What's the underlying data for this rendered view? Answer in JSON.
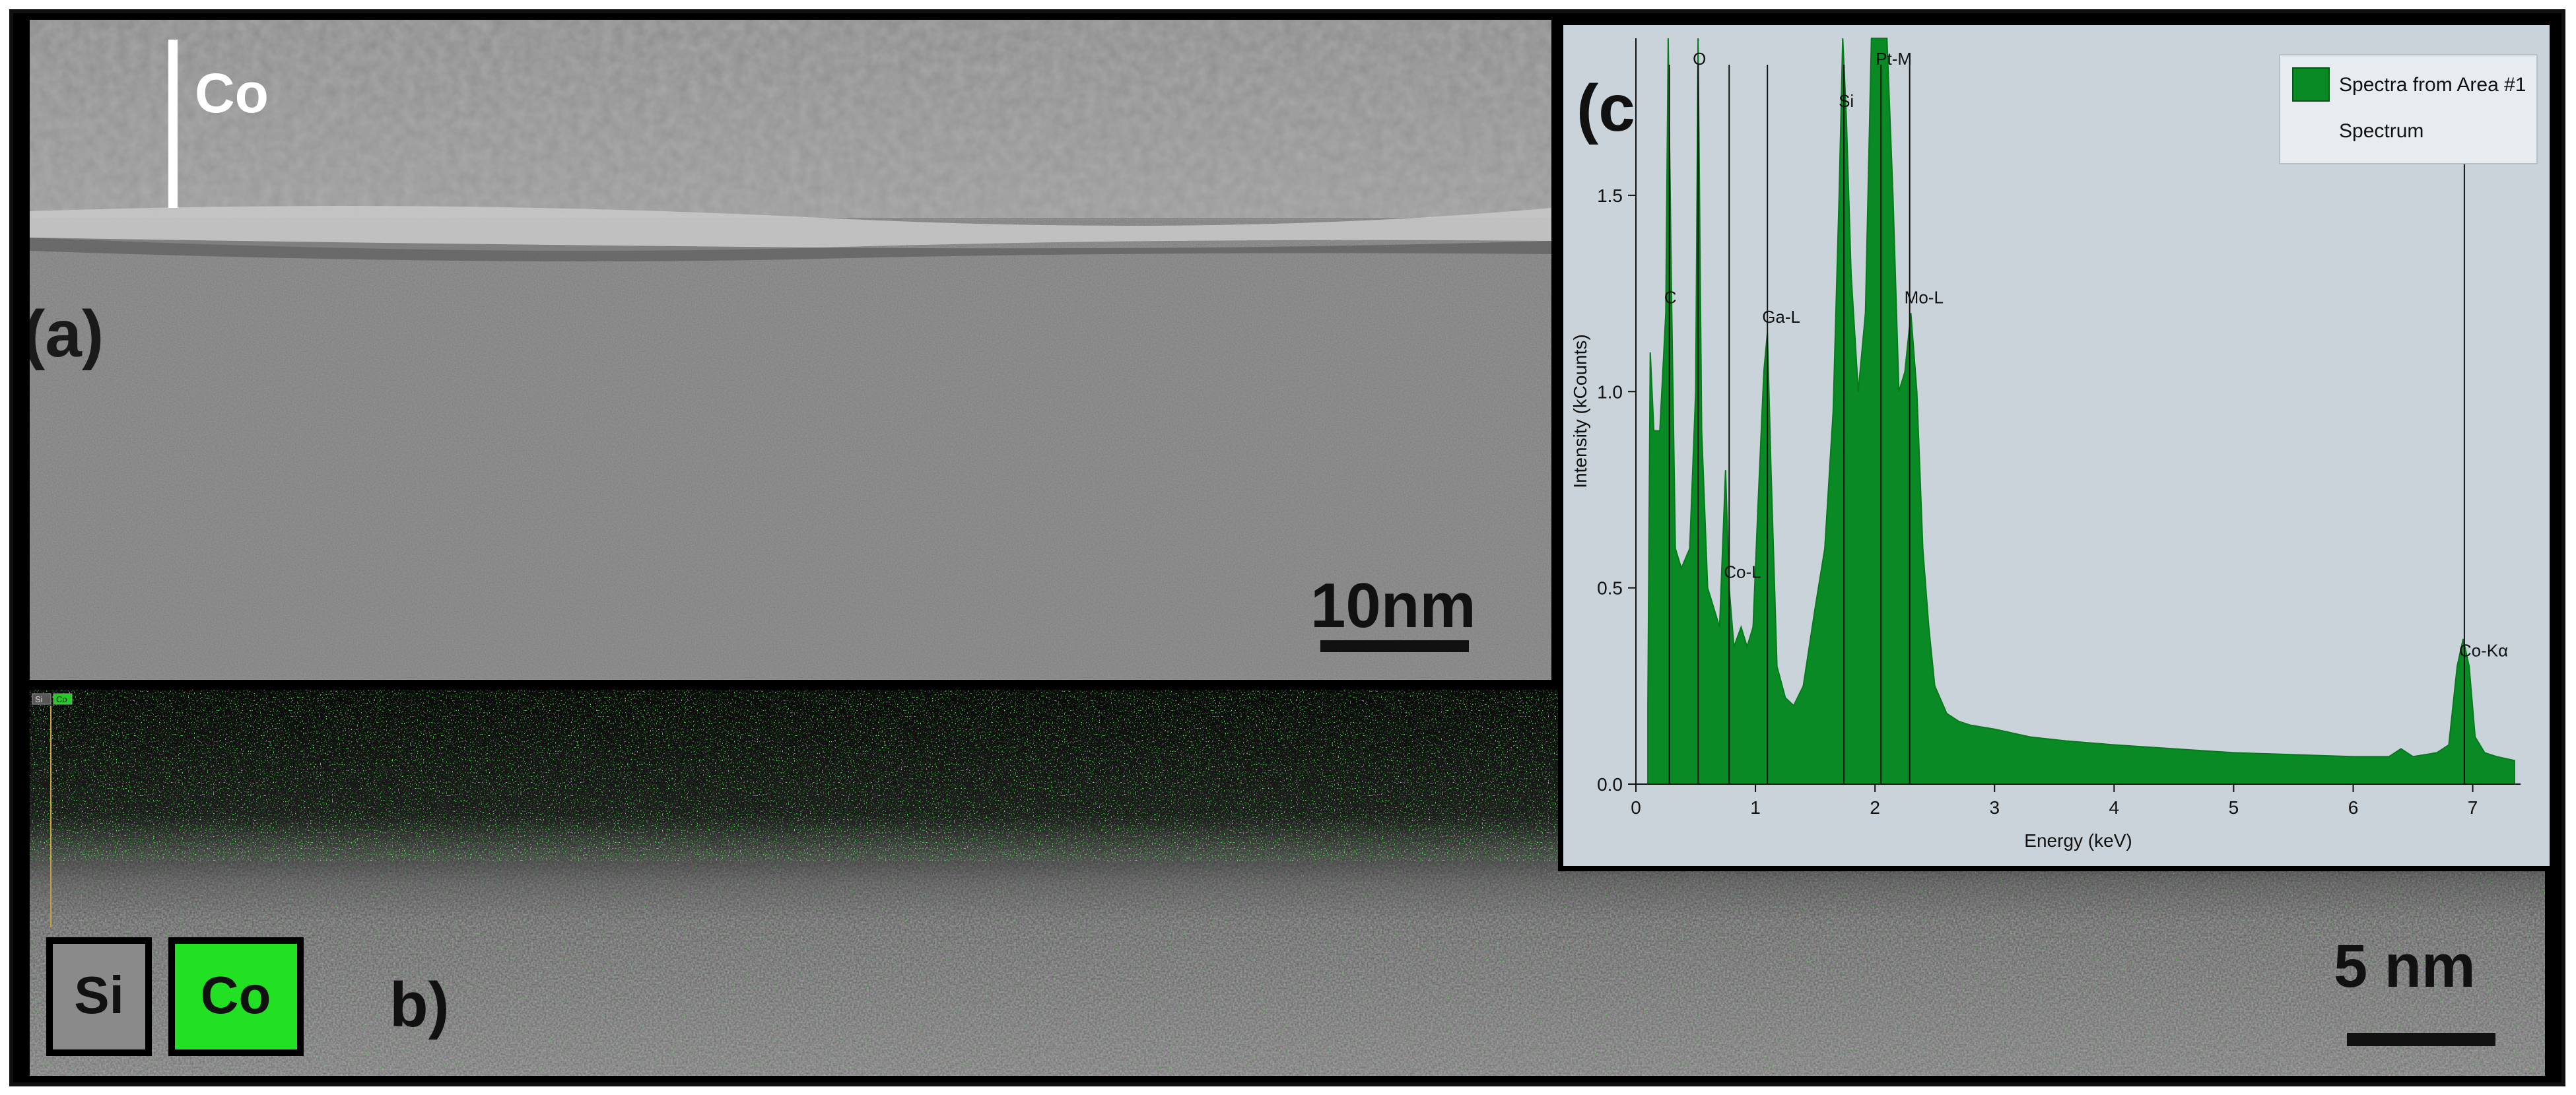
{
  "panel_a": {
    "label": "(a)",
    "layer_label": "Co",
    "scale_bar": "10nm"
  },
  "panel_b": {
    "label": "b)",
    "legend": [
      {
        "label": "Si",
        "color": "#8a8a8a"
      },
      {
        "label": "Co",
        "color": "#22e022"
      }
    ],
    "mini_legend": [
      "Si",
      "Co"
    ],
    "scale_bar": "5 nm",
    "accent_color": "#22dd22"
  },
  "panel_c": {
    "label": "(c)",
    "chart_data": {
      "type": "area",
      "xlabel": "Energy (keV)",
      "ylabel": "Intensity (kCounts)",
      "xlim": [
        0,
        7.4
      ],
      "ylim": [
        0,
        1.9
      ],
      "xticks": [
        "0",
        "1",
        "2",
        "3",
        "4",
        "5",
        "6",
        "7"
      ],
      "yticks": [
        "0.0",
        "0.5",
        "1.0",
        "1.5"
      ],
      "legend": {
        "title": "Spectra from Area #1",
        "subtitle": "Spectrum",
        "placement": "top-right",
        "color": "#0a8a24"
      },
      "series": [
        {
          "name": "Spectra from Area #1",
          "x": [
            0.1,
            0.12,
            0.15,
            0.2,
            0.25,
            0.27,
            0.3,
            0.33,
            0.38,
            0.45,
            0.5,
            0.52,
            0.55,
            0.6,
            0.65,
            0.7,
            0.75,
            0.78,
            0.82,
            0.88,
            0.93,
            0.98,
            1.02,
            1.07,
            1.1,
            1.13,
            1.18,
            1.25,
            1.32,
            1.4,
            1.5,
            1.58,
            1.65,
            1.7,
            1.73,
            1.76,
            1.8,
            1.86,
            1.92,
            1.97,
            2.0,
            2.05,
            2.1,
            2.15,
            2.2,
            2.25,
            2.3,
            2.35,
            2.4,
            2.45,
            2.5,
            2.6,
            2.7,
            2.8,
            3.0,
            3.3,
            3.6,
            4.0,
            4.5,
            5.0,
            5.5,
            6.0,
            6.3,
            6.4,
            6.5,
            6.7,
            6.8,
            6.87,
            6.92,
            6.97,
            7.02,
            7.1,
            7.2,
            7.35
          ],
          "y": [
            0.2,
            1.1,
            0.9,
            0.9,
            1.2,
            1.9,
            1.2,
            0.6,
            0.55,
            0.6,
            1.0,
            1.9,
            0.9,
            0.5,
            0.45,
            0.4,
            0.8,
            0.5,
            0.35,
            0.4,
            0.35,
            0.4,
            0.7,
            1.05,
            1.15,
            0.8,
            0.3,
            0.22,
            0.2,
            0.25,
            0.45,
            0.6,
            0.95,
            1.5,
            1.9,
            1.7,
            1.3,
            1.0,
            1.2,
            1.9,
            1.9,
            1.9,
            1.9,
            1.5,
            1.0,
            1.05,
            1.2,
            1.0,
            0.6,
            0.4,
            0.25,
            0.18,
            0.16,
            0.15,
            0.14,
            0.12,
            0.11,
            0.1,
            0.09,
            0.08,
            0.075,
            0.07,
            0.07,
            0.09,
            0.07,
            0.08,
            0.1,
            0.3,
            0.37,
            0.3,
            0.12,
            0.08,
            0.07,
            0.06
          ]
        }
      ],
      "peaks": [
        {
          "label": "C",
          "x": 0.28
        },
        {
          "label": "O",
          "x": 0.52
        },
        {
          "label": "Co-L",
          "x": 0.78
        },
        {
          "label": "Ga-L",
          "x": 1.1
        },
        {
          "label": "Si",
          "x": 1.74
        },
        {
          "label": "Pt-M",
          "x": 2.05
        },
        {
          "label": "Mo-L",
          "x": 2.29
        },
        {
          "label": "Co-Kα",
          "x": 6.93
        }
      ]
    }
  }
}
